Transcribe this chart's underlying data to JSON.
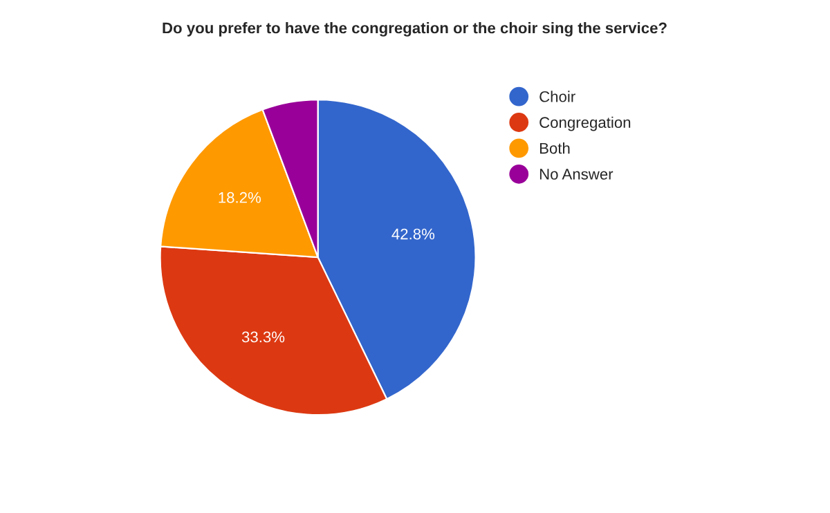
{
  "chart_data": {
    "type": "pie",
    "title": "Do you prefer to have the congregation or the choir sing the service?",
    "categories": [
      "Choir",
      "Congregation",
      "Both",
      "No Answer"
    ],
    "values": [
      42.8,
      33.3,
      18.2,
      5.7
    ],
    "value_labels": [
      "42.8%",
      "33.3%",
      "18.2%",
      null
    ],
    "colors": [
      "#3366cc",
      "#dc3912",
      "#ff9900",
      "#990099"
    ],
    "legend": "right"
  }
}
